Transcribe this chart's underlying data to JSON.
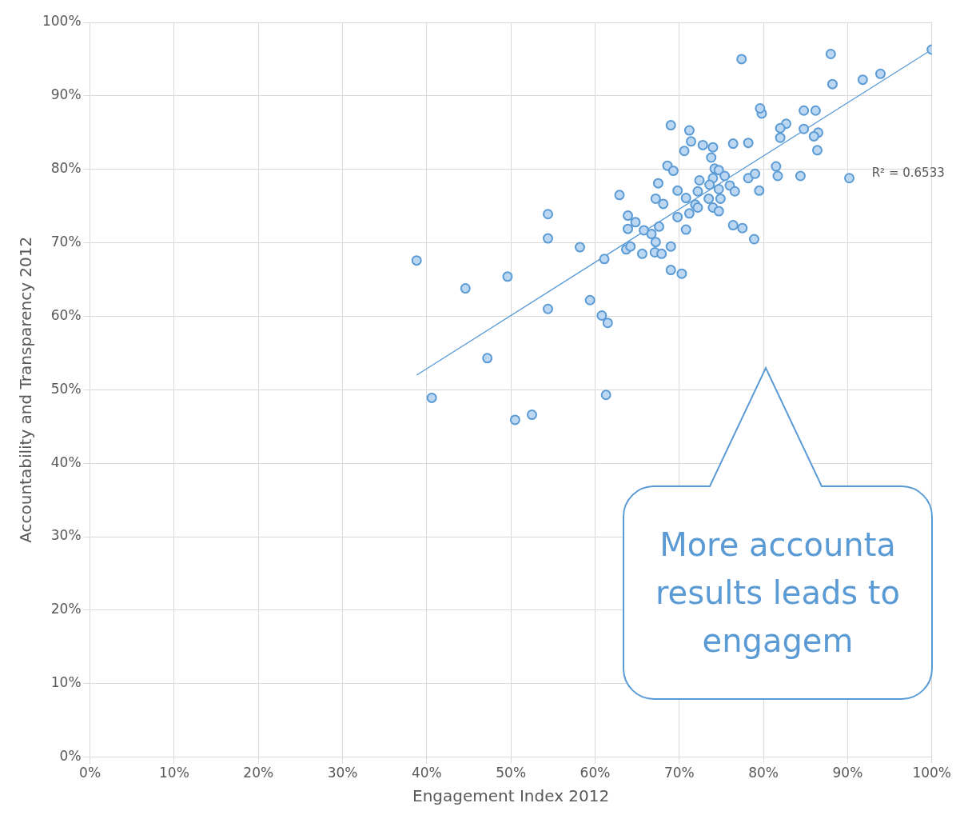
{
  "chart_data": {
    "type": "scatter",
    "xlabel": "Engagement Index 2012",
    "ylabel": "Accountability and Transparency 2012",
    "xlim": [
      0,
      100
    ],
    "ylim": [
      0,
      100
    ],
    "xticks": [
      {
        "value": 0,
        "label": "0%"
      },
      {
        "value": 10,
        "label": "10%"
      },
      {
        "value": 20,
        "label": "20%"
      },
      {
        "value": 30,
        "label": "30%"
      },
      {
        "value": 40,
        "label": "40%"
      },
      {
        "value": 50,
        "label": "50%"
      },
      {
        "value": 60,
        "label": "60%"
      },
      {
        "value": 70,
        "label": "70%"
      },
      {
        "value": 80,
        "label": "80%"
      },
      {
        "value": 90,
        "label": "90%"
      },
      {
        "value": 100,
        "label": "100%"
      }
    ],
    "yticks": [
      {
        "value": 0,
        "label": "0%"
      },
      {
        "value": 10,
        "label": "10%"
      },
      {
        "value": 20,
        "label": "20%"
      },
      {
        "value": 30,
        "label": "30%"
      },
      {
        "value": 40,
        "label": "40%"
      },
      {
        "value": 50,
        "label": "50%"
      },
      {
        "value": 60,
        "label": "60%"
      },
      {
        "value": 70,
        "label": "70%"
      },
      {
        "value": 80,
        "label": "80%"
      },
      {
        "value": 90,
        "label": "90%"
      },
      {
        "value": 100,
        "label": "100%"
      }
    ],
    "grid": true,
    "legend": false,
    "marker": "circle",
    "series": [
      {
        "type": "scatter",
        "color": "#5b9bd5",
        "x": [
          38.8,
          40.6,
          44.6,
          47.2,
          49.6,
          50.5,
          52.5,
          54.4,
          54.4,
          54.4,
          58.2,
          59.4,
          60.8,
          61.5,
          61.3,
          61.1,
          62.9,
          69.0,
          71.2,
          71.4,
          72.8,
          74.0,
          70.6,
          73.8,
          76.4,
          78.2,
          79.8,
          68.6,
          69.3,
          74.2,
          74.7,
          75.4,
          74.0,
          72.4,
          67.5,
          73.6,
          76.0,
          76.6,
          74.7,
          72.2,
          69.8,
          67.2,
          68.1,
          70.8,
          73.5,
          74.9,
          79.5,
          78.2,
          79.0,
          81.5,
          81.7,
          84.4,
          71.9,
          72.2,
          74.0,
          74.7,
          71.2,
          69.8,
          63.9,
          64.8,
          67.6,
          65.8,
          63.9,
          66.7,
          70.8,
          76.4,
          77.5,
          78.9,
          67.2,
          63.7,
          64.2,
          69.0,
          67.1,
          67.9,
          65.6,
          69.0,
          70.3,
          77.4,
          88.0,
          100,
          88.2,
          91.8,
          93.9,
          79.6,
          84.8,
          86.2,
          82.7,
          82.0,
          82.0,
          84.8,
          86.5,
          86.0,
          86.4,
          90.2
        ],
        "values": [
          67.6,
          48.9,
          63.8,
          54.3,
          65.4,
          45.9,
          46.6,
          73.9,
          70.6,
          61.0,
          69.4,
          62.2,
          60.1,
          59.1,
          49.3,
          67.8,
          76.5,
          86.0,
          85.3,
          83.8,
          83.3,
          83.0,
          82.5,
          81.6,
          83.5,
          83.6,
          87.6,
          80.5,
          79.8,
          80.1,
          79.9,
          79.1,
          78.8,
          78.5,
          78.1,
          77.9,
          77.8,
          77.0,
          77.3,
          77.0,
          77.1,
          76.0,
          75.3,
          76.1,
          76.0,
          76.0,
          77.1,
          78.8,
          79.4,
          80.4,
          79.1,
          79.1,
          75.2,
          74.8,
          74.8,
          74.3,
          74.0,
          73.5,
          73.7,
          72.8,
          72.2,
          71.7,
          71.9,
          71.2,
          71.8,
          72.4,
          72.0,
          70.5,
          70.1,
          69.1,
          69.5,
          69.5,
          68.7,
          68.5,
          68.5,
          66.3,
          65.8,
          95.0,
          95.7,
          96.3,
          91.6,
          92.2,
          93.0,
          88.3,
          88.0,
          88.0,
          86.2,
          85.6,
          84.3,
          85.5,
          85.0,
          84.5,
          82.6,
          78.8
        ]
      },
      {
        "type": "line",
        "color": "#5b9bd5",
        "x": [
          38.8,
          100
        ],
        "values": [
          52.0,
          96.3
        ],
        "marker": "none"
      }
    ],
    "annotations": [
      "R² = 0.6533",
      "More accounta\nresults leads to\nengagem"
    ]
  }
}
